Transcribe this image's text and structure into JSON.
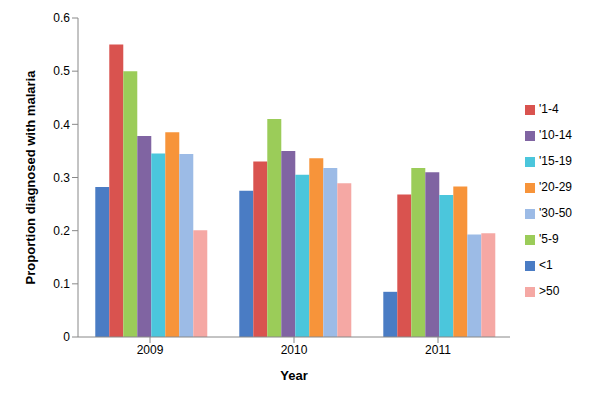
{
  "chart_data": {
    "type": "bar",
    "x_label": "Year",
    "y_label": "Proportion diagnosed with malaria",
    "categories": [
      "2009",
      "2010",
      "2011"
    ],
    "series": [
      {
        "name": "<1",
        "color": "#4a7cc4",
        "values": [
          0.282,
          0.275,
          0.085
        ]
      },
      {
        "name": "'1-4",
        "color": "#d9534f",
        "values": [
          0.55,
          0.33,
          0.268
        ]
      },
      {
        "name": "'5-9",
        "color": "#9bcc59",
        "values": [
          0.5,
          0.41,
          0.318
        ]
      },
      {
        "name": "'10-14",
        "color": "#8064a2",
        "values": [
          0.378,
          0.35,
          0.31
        ]
      },
      {
        "name": "'15-19",
        "color": "#4bc6dc",
        "values": [
          0.345,
          0.305,
          0.267
        ]
      },
      {
        "name": "'20-29",
        "color": "#f7943a",
        "values": [
          0.385,
          0.336,
          0.283
        ]
      },
      {
        "name": "'30-50",
        "color": "#9cbbe6",
        "values": [
          0.344,
          0.318,
          0.193
        ]
      },
      {
        "name": ">50",
        "color": "#f5a8a4",
        "values": [
          0.201,
          0.289,
          0.195
        ]
      }
    ],
    "ylim": [
      0,
      0.6
    ],
    "yticks": [
      0,
      0.1,
      0.2,
      0.3,
      0.4,
      0.5,
      0.6
    ],
    "grid": false,
    "legend": "right"
  }
}
